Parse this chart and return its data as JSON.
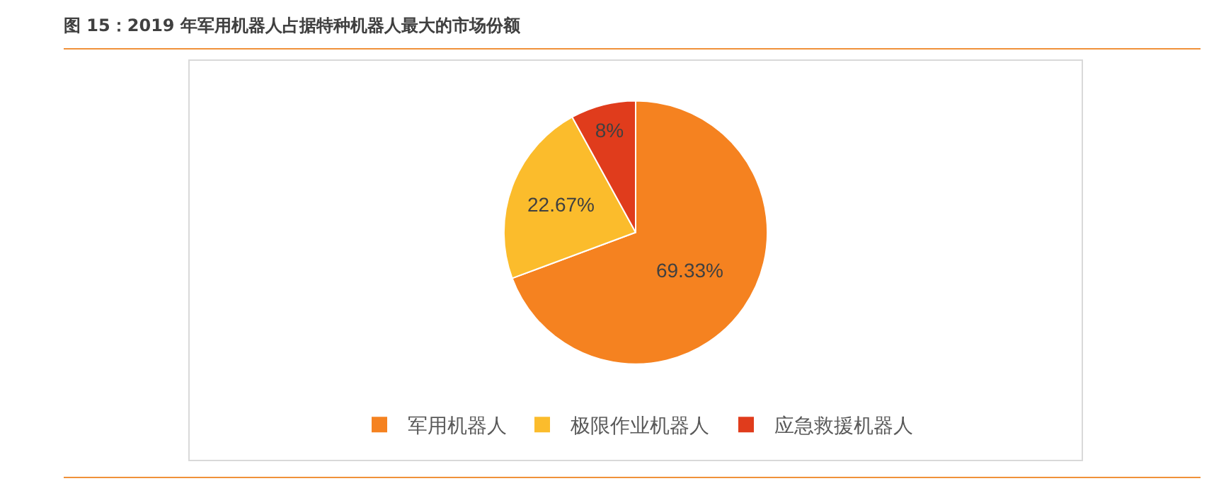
{
  "chart_data": {
    "type": "pie",
    "title": "图 15：2019 年军用机器人占据特种机器人最大的市场份额",
    "categories": [
      "军用机器人",
      "极限作业机器人",
      "应急救援机器人"
    ],
    "values": [
      69.33,
      22.67,
      8
    ],
    "value_labels": [
      "69.33%",
      "22.67%",
      "8%"
    ],
    "colors": [
      "#f58220",
      "#fbbc2c",
      "#e03c1c"
    ],
    "legend": "bottom"
  }
}
